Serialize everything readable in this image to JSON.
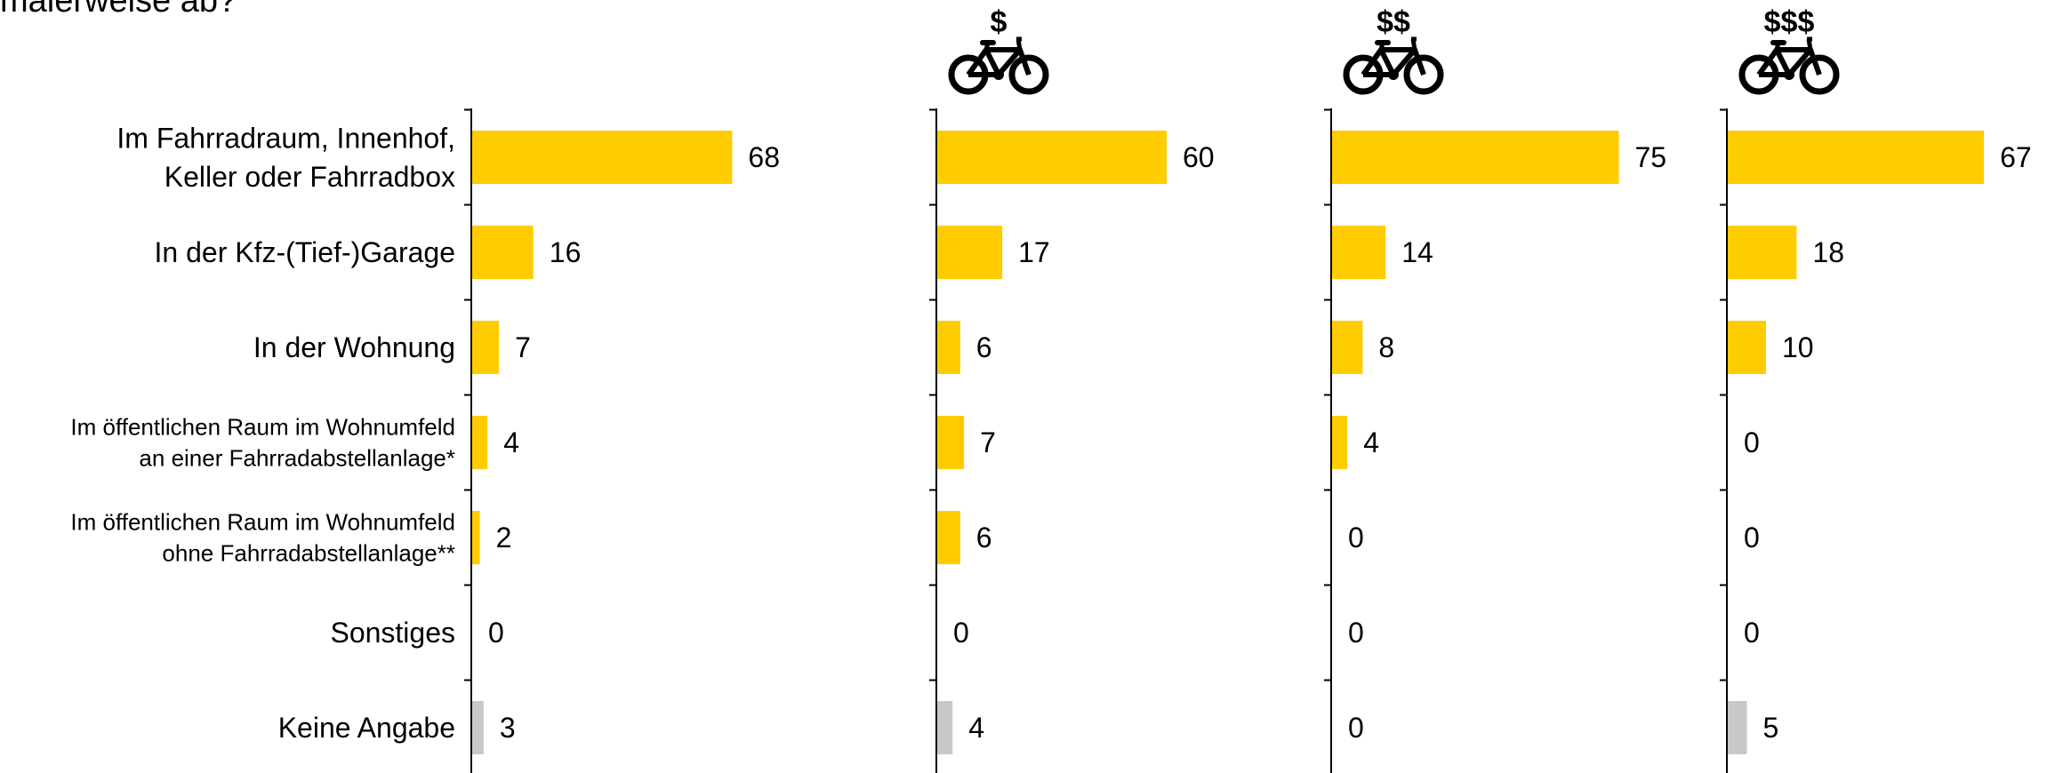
{
  "title_fragment": "malerweise ab?",
  "colors": {
    "bar": "#FFCC00",
    "bar_na": "#C8C8C8",
    "axis": "#000000",
    "text": "#000000"
  },
  "chart_data": [
    {
      "type": "bar",
      "orientation": "horizontal",
      "header": "",
      "header_icon": null,
      "categories": [
        [
          "Im Fahrradraum, Innenhof,",
          "Keller oder Fahrradbox"
        ],
        [
          "In der Kfz-(Tief-)Garage"
        ],
        [
          "In der Wohnung"
        ],
        [
          "Im öffentlichen Raum im Wohnumfeld",
          "an einer Fahrradabstellanlage*"
        ],
        [
          "Im öffentlichen Raum im Wohnumfeld",
          "ohne Fahrradabstellanlage**"
        ],
        [
          "Sonstiges"
        ],
        [
          "Keine Angabe"
        ]
      ],
      "values": [
        68,
        16,
        7,
        4,
        2,
        0,
        3
      ],
      "xlim": [
        0,
        100
      ],
      "grid": false
    },
    {
      "type": "bar",
      "orientation": "horizontal",
      "header": "$",
      "header_icon": "bicycle-icon",
      "values": [
        60,
        17,
        6,
        7,
        6,
        0,
        4
      ],
      "xlim": [
        0,
        100
      ],
      "grid": false
    },
    {
      "type": "bar",
      "orientation": "horizontal",
      "header": "$$",
      "header_icon": "bicycle-icon",
      "values": [
        75,
        14,
        8,
        4,
        0,
        0,
        0
      ],
      "xlim": [
        0,
        100
      ],
      "grid": false
    },
    {
      "type": "bar",
      "orientation": "horizontal",
      "header": "$$$",
      "header_icon": "bicycle-icon",
      "values": [
        67,
        18,
        10,
        0,
        0,
        0,
        5
      ],
      "xlim": [
        0,
        100
      ],
      "grid": false
    }
  ]
}
